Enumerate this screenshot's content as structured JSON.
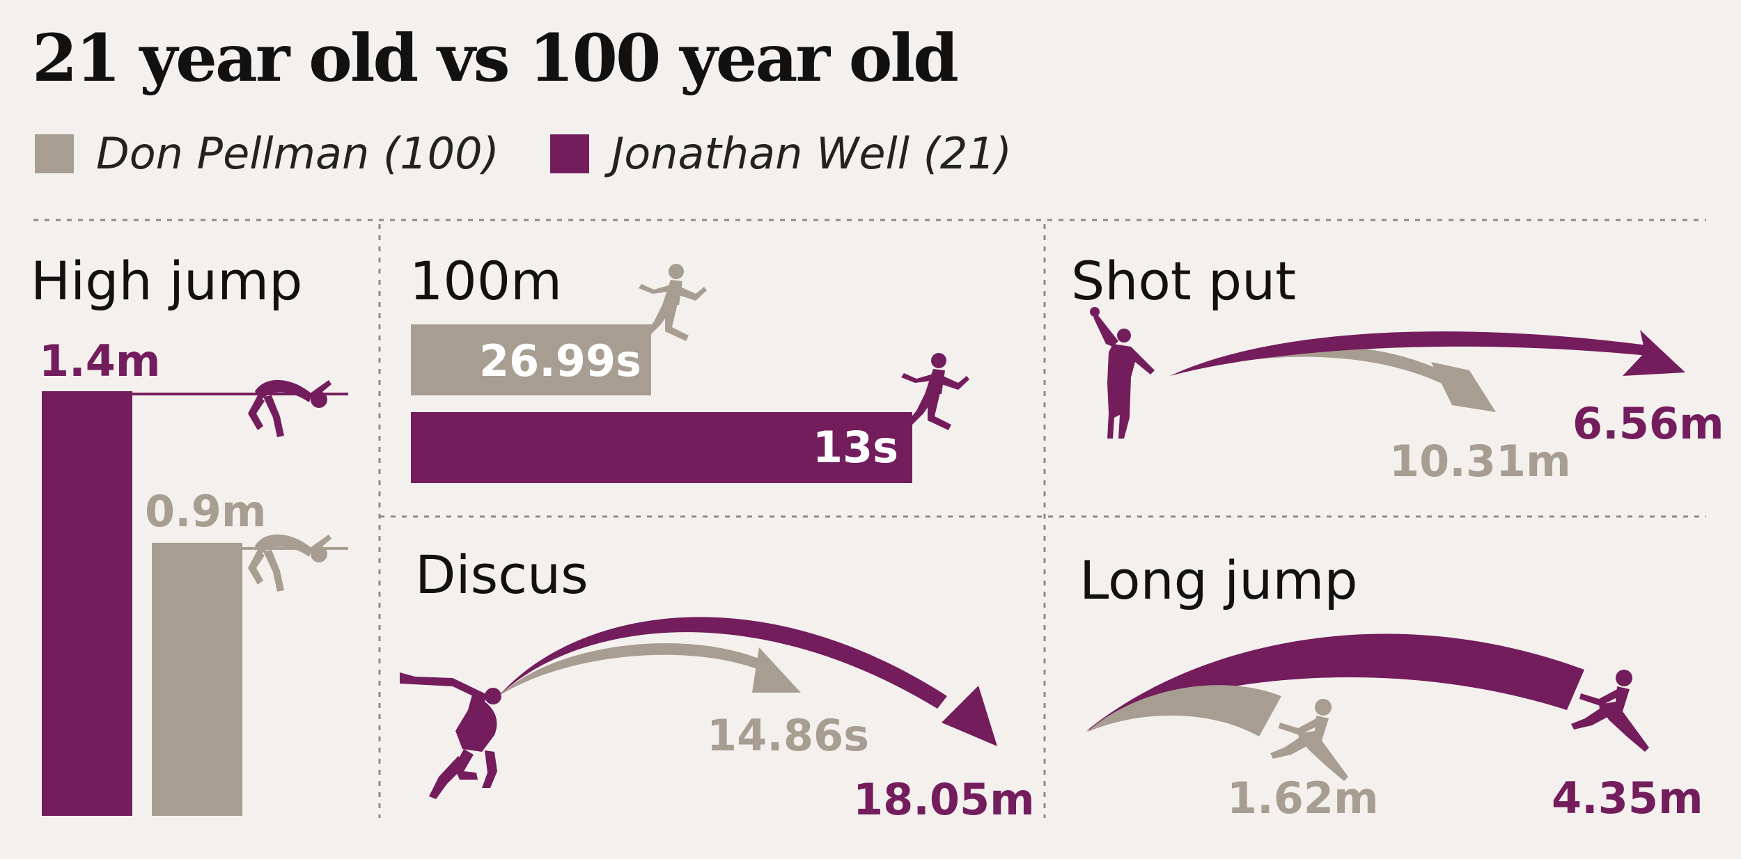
{
  "title": "21 year old vs 100 year old",
  "colors": {
    "old": "#a79d91",
    "young": "#731d5d",
    "background": "#f4f0ed"
  },
  "legend": [
    {
      "name": "Don Pellman (100)",
      "color": "#a79d91"
    },
    {
      "name": "Jonathan Well (21)",
      "color": "#731d5d"
    }
  ],
  "chart_data": [
    {
      "type": "bar",
      "orientation": "vertical",
      "title": "High jump",
      "series": [
        {
          "name": "Jonathan Well (21)",
          "value": 1.4,
          "label": "1.4m",
          "color": "#731d5d"
        },
        {
          "name": "Don Pellman (100)",
          "value": 0.9,
          "label": "0.9m",
          "color": "#a79d91"
        }
      ]
    },
    {
      "type": "bar",
      "orientation": "horizontal",
      "title": "100m",
      "series": [
        {
          "name": "Don Pellman (100)",
          "value": 26.99,
          "label": "26.99s",
          "color": "#a79d91"
        },
        {
          "name": "Jonathan Well (21)",
          "value": 13,
          "label": "13s",
          "color": "#731d5d"
        }
      ]
    },
    {
      "type": "arc",
      "title": "Shot put",
      "series": [
        {
          "name": "Don Pellman (100)",
          "value": 10.31,
          "label": "10.31m",
          "color": "#a79d91"
        },
        {
          "name": "Jonathan Well (21)",
          "value": 6.56,
          "label": "6.56m",
          "color": "#731d5d"
        }
      ]
    },
    {
      "type": "arc",
      "title": "Discus",
      "series": [
        {
          "name": "Don Pellman (100)",
          "value": 14.86,
          "label": "14.86s",
          "color": "#a79d91"
        },
        {
          "name": "Jonathan Well (21)",
          "value": 18.05,
          "label": "18.05m",
          "color": "#731d5d"
        }
      ]
    },
    {
      "type": "arc",
      "title": "Long jump",
      "series": [
        {
          "name": "Don Pellman (100)",
          "value": 1.62,
          "label": "1.62m",
          "color": "#a79d91"
        },
        {
          "name": "Jonathan Well (21)",
          "value": 4.35,
          "label": "4.35m",
          "color": "#731d5d"
        }
      ]
    }
  ]
}
